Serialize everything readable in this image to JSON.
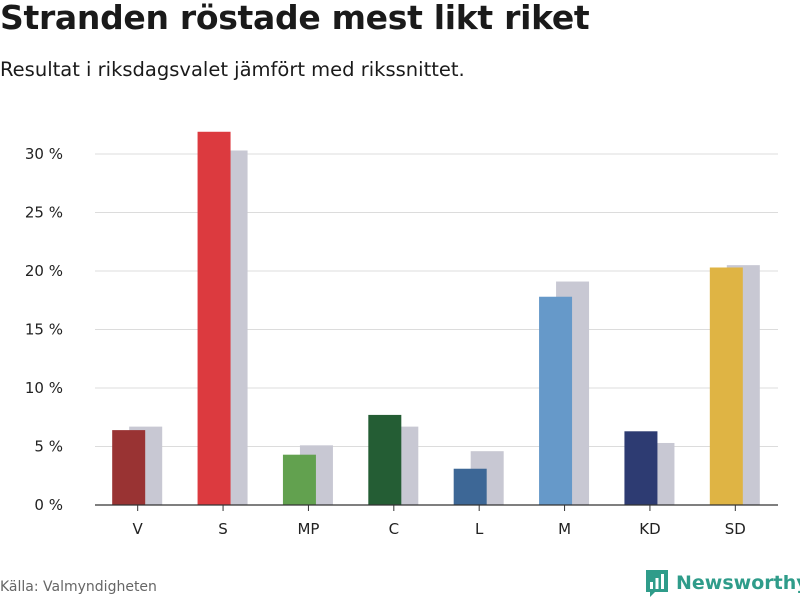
{
  "title": "Stranden röstade mest likt riket",
  "subtitle": "Resultat i riksdagsvalet jämfört med rikssnittet.",
  "source": "Källa: Valmyndigheten",
  "brand": {
    "name": "Newsworthy",
    "icon": "bar-chart-icon",
    "color": "#2f9c8a"
  },
  "chart_data": {
    "type": "bar",
    "title": "Stranden röstade mest likt riket",
    "subtitle": "Resultat i riksdagsvalet jämfört med rikssnittet.",
    "categories": [
      "V",
      "S",
      "MP",
      "C",
      "L",
      "M",
      "KD",
      "SD"
    ],
    "series": [
      {
        "name": "Stranden",
        "values": [
          6.4,
          31.9,
          4.3,
          7.7,
          3.1,
          17.8,
          6.3,
          20.3
        ],
        "colors": [
          "#993333",
          "#dc3a3f",
          "#62a14f",
          "#245d34",
          "#3d6796",
          "#6699c9",
          "#2d3b72",
          "#dfb444"
        ]
      },
      {
        "name": "Riket",
        "values": [
          6.7,
          30.3,
          5.1,
          6.7,
          4.6,
          19.1,
          5.3,
          20.5
        ],
        "color": "#c8c8d3"
      }
    ],
    "yticks": [
      0,
      5,
      10,
      15,
      20,
      25,
      30
    ],
    "ytick_labels": [
      "0 %",
      "5 %",
      "10 %",
      "15 %",
      "20 %",
      "25 %",
      "30 %"
    ],
    "ylim": [
      0,
      32
    ],
    "xlabel": "",
    "ylabel": "",
    "grid": true
  }
}
